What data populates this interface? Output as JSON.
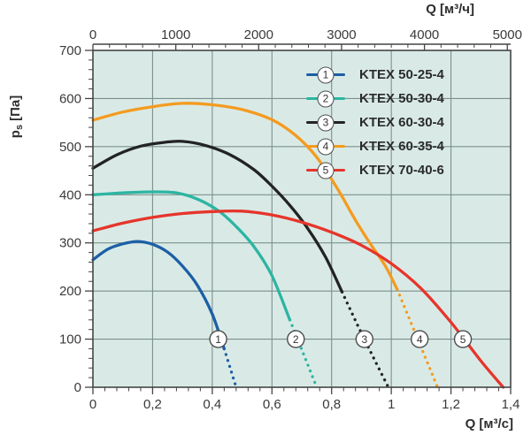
{
  "chart_data": {
    "type": "line",
    "title": "",
    "legend_position": "top-right",
    "grid": true,
    "marker_pressure": 100,
    "series": [
      {
        "id": 1,
        "name": "KTEX 50-25-4",
        "color": "#1c5fa5",
        "solid_until": 0.44,
        "marker_q": 0.42,
        "points": [
          [
            0,
            265
          ],
          [
            0.05,
            287
          ],
          [
            0.1,
            298
          ],
          [
            0.15,
            303
          ],
          [
            0.2,
            297
          ],
          [
            0.25,
            281
          ],
          [
            0.3,
            252
          ],
          [
            0.35,
            212
          ],
          [
            0.4,
            152
          ],
          [
            0.44,
            80
          ],
          [
            0.46,
            40
          ],
          [
            0.48,
            0
          ]
        ]
      },
      {
        "id": 2,
        "name": "KTEX 50-30-4",
        "color": "#2cb5a2",
        "solid_until": 0.66,
        "marker_q": 0.68,
        "points": [
          [
            0,
            400
          ],
          [
            0.1,
            404
          ],
          [
            0.2,
            406
          ],
          [
            0.28,
            404
          ],
          [
            0.35,
            391
          ],
          [
            0.42,
            367
          ],
          [
            0.48,
            334
          ],
          [
            0.54,
            292
          ],
          [
            0.6,
            232
          ],
          [
            0.66,
            140
          ],
          [
            0.7,
            78
          ],
          [
            0.75,
            0
          ]
        ]
      },
      {
        "id": 3,
        "name": "KTEX 60-30-4",
        "color": "#232323",
        "solid_until": 0.835,
        "marker_q": 0.91,
        "points": [
          [
            0,
            455
          ],
          [
            0.08,
            483
          ],
          [
            0.16,
            501
          ],
          [
            0.24,
            509
          ],
          [
            0.3,
            511
          ],
          [
            0.38,
            502
          ],
          [
            0.46,
            483
          ],
          [
            0.54,
            452
          ],
          [
            0.6,
            418
          ],
          [
            0.66,
            378
          ],
          [
            0.72,
            330
          ],
          [
            0.78,
            270
          ],
          [
            0.835,
            198
          ],
          [
            0.89,
            125
          ],
          [
            0.94,
            62
          ],
          [
            0.99,
            0
          ]
        ]
      },
      {
        "id": 4,
        "name": "KTEX 60-35-4",
        "color": "#f49b20",
        "solid_until": 1.02,
        "marker_q": 1.095,
        "points": [
          [
            0,
            555
          ],
          [
            0.1,
            572
          ],
          [
            0.2,
            583
          ],
          [
            0.3,
            590
          ],
          [
            0.4,
            587
          ],
          [
            0.5,
            577
          ],
          [
            0.6,
            556
          ],
          [
            0.68,
            523
          ],
          [
            0.75,
            478
          ],
          [
            0.82,
            412
          ],
          [
            0.88,
            347
          ],
          [
            0.93,
            298
          ],
          [
            0.98,
            252
          ],
          [
            1.02,
            203
          ],
          [
            1.07,
            128
          ],
          [
            1.11,
            68
          ],
          [
            1.155,
            0
          ]
        ]
      },
      {
        "id": 5,
        "name": "KTEX 70-40-6",
        "color": "#e6352b",
        "solid_until": 1.375,
        "marker_q": 1.24,
        "points": [
          [
            0,
            325
          ],
          [
            0.1,
            341
          ],
          [
            0.2,
            353
          ],
          [
            0.3,
            361
          ],
          [
            0.4,
            365
          ],
          [
            0.5,
            366
          ],
          [
            0.6,
            358
          ],
          [
            0.7,
            343
          ],
          [
            0.8,
            322
          ],
          [
            0.9,
            295
          ],
          [
            1.0,
            257
          ],
          [
            1.1,
            205
          ],
          [
            1.2,
            135
          ],
          [
            1.3,
            55
          ],
          [
            1.375,
            0
          ]
        ]
      }
    ],
    "x_axis_bottom": {
      "label": "Q [м³/с]",
      "range": [
        0,
        1.4
      ],
      "major_ticks": [
        0,
        0.2,
        0.4,
        0.6,
        0.8,
        1,
        1.2,
        1.4
      ],
      "tick_labels": [
        "0",
        "0,2",
        "0,4",
        "0,6",
        "0,8",
        "1",
        "1,2",
        "1,4"
      ],
      "minor_step": 0.04
    },
    "x_axis_top": {
      "label": "Q [м³/ч]",
      "major_ticks": [
        0,
        1000,
        2000,
        3000,
        4000,
        5000
      ],
      "tick_labels": [
        "0",
        "1000",
        "2000",
        "3000",
        "4000",
        "5000"
      ],
      "minor_step": 200,
      "conversion_to_bottom_units": 3600
    },
    "y_axis": {
      "label_symbol": "p",
      "label_subscript": "s",
      "label_unit": "[Па]",
      "range": [
        0,
        700
      ],
      "major_ticks": [
        0,
        100,
        200,
        300,
        400,
        500,
        600,
        700
      ],
      "tick_labels": [
        "0",
        "100",
        "200",
        "300",
        "400",
        "500",
        "600",
        "700"
      ],
      "minor_step": 20
    },
    "colors": {
      "plot_background": "#d9eae6",
      "gridline": "#7d908d",
      "axis": "#454545",
      "text": "#3a3a3a"
    }
  }
}
